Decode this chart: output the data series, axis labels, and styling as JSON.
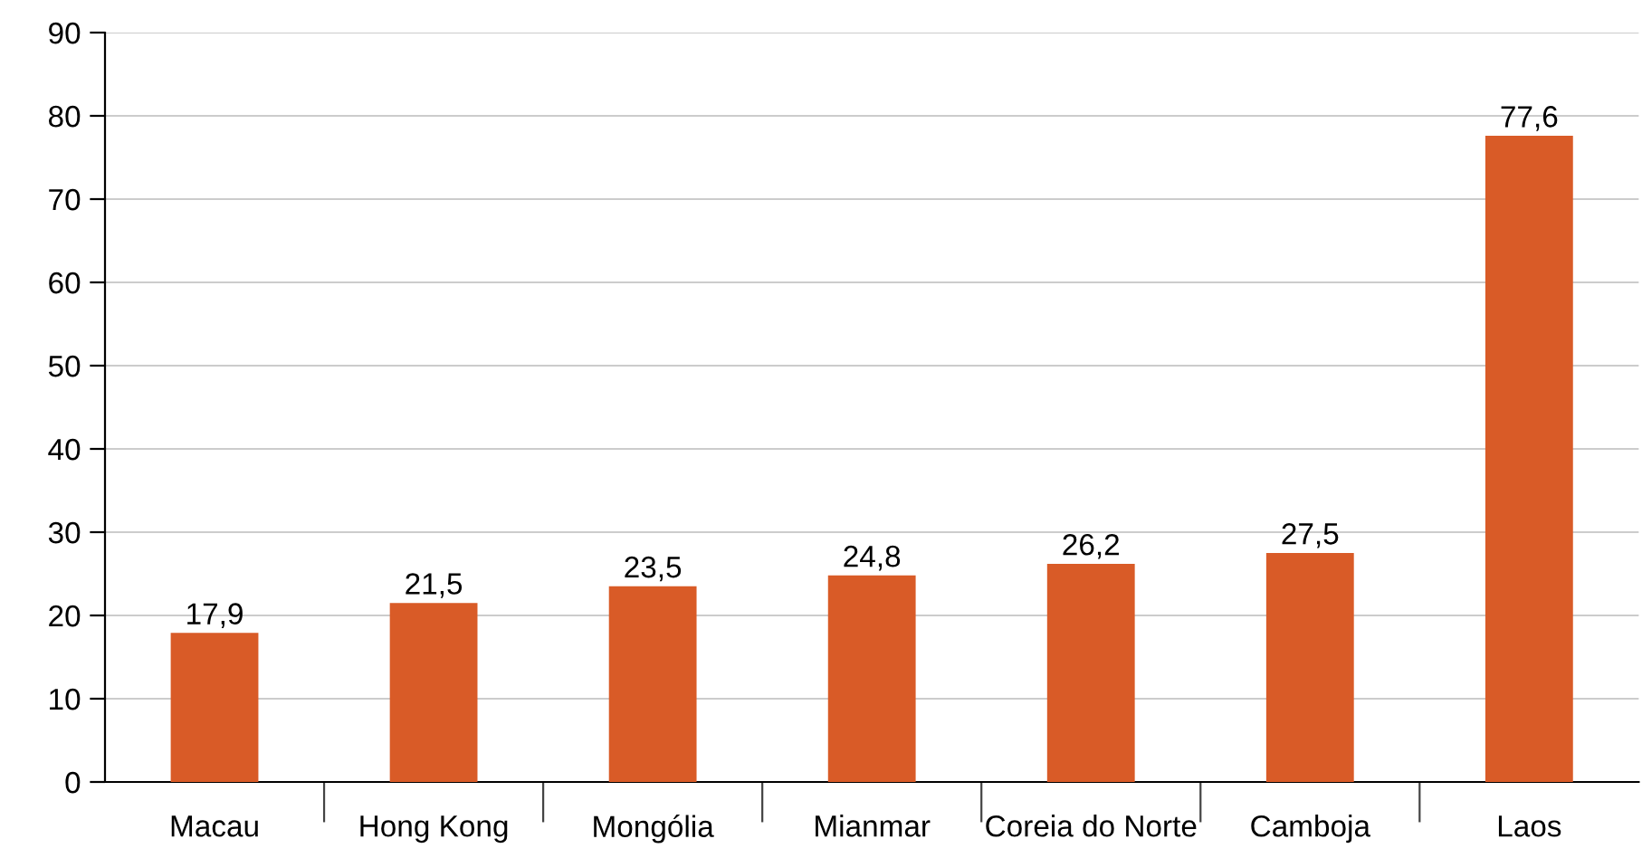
{
  "chart_data": {
    "type": "bar",
    "categories": [
      "Macau",
      "Hong Kong",
      "Mongólia",
      "Mianmar",
      "Coreia do Norte",
      "Camboja",
      "Laos"
    ],
    "values": [
      17.9,
      21.5,
      23.5,
      24.8,
      26.2,
      27.5,
      77.6
    ],
    "value_labels": [
      "17,9",
      "21,5",
      "23,5",
      "24,8",
      "26,2",
      "27,5",
      "77,6"
    ],
    "color": "#d95b27",
    "ylim": [
      0,
      90
    ],
    "yticks": [
      0,
      10,
      20,
      30,
      40,
      50,
      60,
      70,
      80,
      90
    ],
    "grid": "y"
  }
}
